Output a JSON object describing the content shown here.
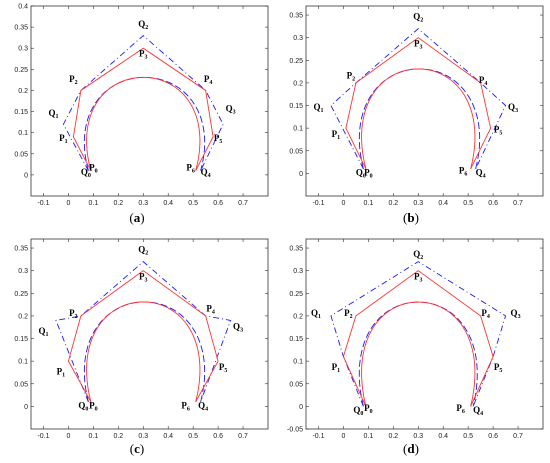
{
  "colors": {
    "control": "#1a1aff",
    "fitted": "#ff3333",
    "frame": "#333333"
  },
  "chart_data": [
    {
      "type": "line",
      "caption": "(a)",
      "xlim": [
        -0.15,
        0.8
      ],
      "ylim": [
        -0.05,
        0.4
      ],
      "xticks": [
        -0.1,
        0,
        0.1,
        0.2,
        0.3,
        0.4,
        0.5,
        0.6,
        0.7
      ],
      "yticks": [
        0,
        0.05,
        0.1,
        0.15,
        0.2,
        0.25,
        0.3,
        0.35,
        0.4
      ],
      "xtick_labels": [
        "-0.1",
        "0",
        "0.1",
        "0.2",
        "0.3",
        "0.4",
        "0.5",
        "0.6",
        "0.7"
      ],
      "ytick_labels": [
        "0",
        "0.05",
        "0.1",
        "0.15",
        "0.2",
        "0.25",
        "0.3",
        "0.35",
        "0.4"
      ],
      "series": [
        {
          "style": "control",
          "points": [
            [
              0.08,
              0.01
            ],
            [
              -0.02,
              0.12
            ],
            [
              0.05,
              0.2
            ],
            [
              0.3,
              0.33
            ],
            [
              0.55,
              0.2
            ],
            [
              0.62,
              0.12
            ],
            [
              0.53,
              0.01
            ]
          ]
        },
        {
          "style": "fitted",
          "points": [
            [
              0.09,
              0.01
            ],
            [
              0.02,
              0.09
            ],
            [
              0.05,
              0.2
            ],
            [
              0.3,
              0.3
            ],
            [
              0.55,
              0.2
            ],
            [
              0.58,
              0.09
            ],
            [
              0.51,
              0.01
            ]
          ]
        }
      ],
      "labels": [
        {
          "t": "Q",
          "s": "0",
          "x": 0.07,
          "y": 0.0
        },
        {
          "t": "P",
          "s": "0",
          "x": 0.1,
          "y": 0.01
        },
        {
          "t": "Q",
          "s": "1",
          "x": -0.06,
          "y": 0.14
        },
        {
          "t": "P",
          "s": "1",
          "x": -0.02,
          "y": 0.08
        },
        {
          "t": "P",
          "s": "2",
          "x": 0.02,
          "y": 0.22
        },
        {
          "t": "Q",
          "s": "2",
          "x": 0.3,
          "y": 0.35
        },
        {
          "t": "P",
          "s": "3",
          "x": 0.3,
          "y": 0.28
        },
        {
          "t": "P",
          "s": "4",
          "x": 0.56,
          "y": 0.22
        },
        {
          "t": "Q",
          "s": "3",
          "x": 0.65,
          "y": 0.15
        },
        {
          "t": "P",
          "s": "5",
          "x": 0.6,
          "y": 0.08
        },
        {
          "t": "P",
          "s": "6",
          "x": 0.49,
          "y": 0.01
        },
        {
          "t": "Q",
          "s": "4",
          "x": 0.55,
          "y": 0.0
        }
      ]
    },
    {
      "type": "line",
      "caption": "(b)",
      "xlim": [
        -0.15,
        0.8
      ],
      "ylim": [
        -0.05,
        0.37
      ],
      "xticks": [
        -0.1,
        0,
        0.1,
        0.2,
        0.3,
        0.4,
        0.5,
        0.6,
        0.7
      ],
      "yticks": [
        0,
        0.05,
        0.1,
        0.15,
        0.2,
        0.25,
        0.3,
        0.35
      ],
      "xtick_labels": [
        "-0.1",
        "0",
        "0.1",
        "0.2",
        "0.3",
        "0.4",
        "0.5",
        "0.6",
        "0.7"
      ],
      "ytick_labels": [
        "0",
        "0.05",
        "0.1",
        "0.15",
        "0.2",
        "0.25",
        "0.3",
        "0.35"
      ],
      "series": [
        {
          "style": "control",
          "points": [
            [
              0.08,
              0.01
            ],
            [
              -0.05,
              0.15
            ],
            [
              0.05,
              0.2
            ],
            [
              0.3,
              0.32
            ],
            [
              0.55,
              0.2
            ],
            [
              0.65,
              0.15
            ],
            [
              0.53,
              0.01
            ]
          ]
        },
        {
          "style": "fitted",
          "points": [
            [
              0.09,
              0.01
            ],
            [
              0.01,
              0.1
            ],
            [
              0.05,
              0.2
            ],
            [
              0.3,
              0.3
            ],
            [
              0.55,
              0.2
            ],
            [
              0.59,
              0.1
            ],
            [
              0.51,
              0.01
            ]
          ]
        }
      ],
      "labels": [
        {
          "t": "Q",
          "s": "0",
          "x": 0.07,
          "y": -0.005
        },
        {
          "t": "P",
          "s": "0",
          "x": 0.1,
          "y": -0.005
        },
        {
          "t": "Q",
          "s": "1",
          "x": -0.1,
          "y": 0.14
        },
        {
          "t": "P",
          "s": "1",
          "x": -0.03,
          "y": 0.08
        },
        {
          "t": "P",
          "s": "2",
          "x": 0.03,
          "y": 0.21
        },
        {
          "t": "Q",
          "s": "2",
          "x": 0.3,
          "y": 0.34
        },
        {
          "t": "P",
          "s": "3",
          "x": 0.3,
          "y": 0.28
        },
        {
          "t": "P",
          "s": "4",
          "x": 0.56,
          "y": 0.2
        },
        {
          "t": "Q",
          "s": "3",
          "x": 0.68,
          "y": 0.14
        },
        {
          "t": "P",
          "s": "5",
          "x": 0.62,
          "y": 0.09
        },
        {
          "t": "P",
          "s": "6",
          "x": 0.48,
          "y": 0.0
        },
        {
          "t": "Q",
          "s": "4",
          "x": 0.55,
          "y": -0.005
        }
      ]
    },
    {
      "type": "line",
      "caption": "(c)",
      "xlim": [
        -0.15,
        0.8
      ],
      "ylim": [
        -0.05,
        0.37
      ],
      "xticks": [
        -0.1,
        0,
        0.1,
        0.2,
        0.3,
        0.4,
        0.5,
        0.6,
        0.7
      ],
      "yticks": [
        0,
        0.05,
        0.1,
        0.15,
        0.2,
        0.25,
        0.3,
        0.35
      ],
      "xtick_labels": [
        "-0.1",
        "0",
        "0.1",
        "0.2",
        "0.3",
        "0.4",
        "0.5",
        "0.6",
        "0.7"
      ],
      "ytick_labels": [
        "0",
        "0.05",
        "0.1",
        "0.15",
        "0.2",
        "0.25",
        "0.3",
        "0.35"
      ],
      "series": [
        {
          "style": "control",
          "points": [
            [
              0.08,
              0.01
            ],
            [
              -0.05,
              0.19
            ],
            [
              0.05,
              0.2
            ],
            [
              0.3,
              0.32
            ],
            [
              0.55,
              0.2
            ],
            [
              0.65,
              0.19
            ],
            [
              0.53,
              0.01
            ]
          ]
        },
        {
          "style": "fitted",
          "points": [
            [
              0.09,
              0.01
            ],
            [
              0.0,
              0.1
            ],
            [
              0.05,
              0.2
            ],
            [
              0.3,
              0.3
            ],
            [
              0.55,
              0.2
            ],
            [
              0.6,
              0.1
            ],
            [
              0.51,
              0.01
            ]
          ]
        }
      ],
      "labels": [
        {
          "t": "Q",
          "s": "0",
          "x": 0.06,
          "y": -0.005
        },
        {
          "t": "P",
          "s": "0",
          "x": 0.1,
          "y": -0.005
        },
        {
          "t": "Q",
          "s": "1",
          "x": -0.1,
          "y": 0.16
        },
        {
          "t": "P",
          "s": "1",
          "x": -0.03,
          "y": 0.07
        },
        {
          "t": "P",
          "s": "2",
          "x": 0.02,
          "y": 0.2
        },
        {
          "t": "Q",
          "s": "2",
          "x": 0.3,
          "y": 0.34
        },
        {
          "t": "P",
          "s": "3",
          "x": 0.3,
          "y": 0.28
        },
        {
          "t": "P",
          "s": "4",
          "x": 0.57,
          "y": 0.21
        },
        {
          "t": "Q",
          "s": "3",
          "x": 0.68,
          "y": 0.17
        },
        {
          "t": "P",
          "s": "5",
          "x": 0.62,
          "y": 0.08
        },
        {
          "t": "P",
          "s": "6",
          "x": 0.47,
          "y": -0.005
        },
        {
          "t": "Q",
          "s": "4",
          "x": 0.54,
          "y": -0.005
        }
      ]
    },
    {
      "type": "line",
      "caption": "(d)",
      "xlim": [
        -0.15,
        0.8
      ],
      "ylim": [
        -0.05,
        0.37
      ],
      "xticks": [
        -0.1,
        0,
        0.1,
        0.2,
        0.3,
        0.4,
        0.5,
        0.6,
        0.7
      ],
      "yticks": [
        -0.05,
        0,
        0.05,
        0.1,
        0.15,
        0.2,
        0.25,
        0.3,
        0.35
      ],
      "xtick_labels": [
        "-0.1",
        "0",
        "0.1",
        "0.2",
        "0.3",
        "0.4",
        "0.5",
        "0.6",
        "0.7"
      ],
      "ytick_labels": [
        "-0.05",
        "0",
        "0.05",
        "0.1",
        "0.15",
        "0.2",
        "0.25",
        "0.3",
        "0.35"
      ],
      "series": [
        {
          "style": "control",
          "points": [
            [
              0.08,
              0.0
            ],
            [
              0.0,
              0.11
            ],
            [
              -0.05,
              0.2
            ],
            [
              0.3,
              0.32
            ],
            [
              0.65,
              0.2
            ],
            [
              0.6,
              0.11
            ],
            [
              0.52,
              0.0
            ]
          ]
        },
        {
          "style": "fitted",
          "points": [
            [
              0.09,
              0.0
            ],
            [
              0.0,
              0.11
            ],
            [
              0.05,
              0.2
            ],
            [
              0.3,
              0.3
            ],
            [
              0.55,
              0.2
            ],
            [
              0.6,
              0.11
            ],
            [
              0.51,
              0.0
            ]
          ]
        }
      ],
      "labels": [
        {
          "t": "Q",
          "s": "0",
          "x": 0.06,
          "y": -0.015
        },
        {
          "t": "P",
          "s": "0",
          "x": 0.1,
          "y": -0.01
        },
        {
          "t": "Q",
          "s": "1",
          "x": -0.11,
          "y": 0.2
        },
        {
          "t": "P",
          "s": "1",
          "x": -0.03,
          "y": 0.08
        },
        {
          "t": "P",
          "s": "2",
          "x": 0.02,
          "y": 0.2
        },
        {
          "t": "Q",
          "s": "2",
          "x": 0.3,
          "y": 0.33
        },
        {
          "t": "P",
          "s": "3",
          "x": 0.3,
          "y": 0.28
        },
        {
          "t": "P",
          "s": "4",
          "x": 0.57,
          "y": 0.2
        },
        {
          "t": "Q",
          "s": "3",
          "x": 0.69,
          "y": 0.2
        },
        {
          "t": "P",
          "s": "5",
          "x": 0.62,
          "y": 0.08
        },
        {
          "t": "P",
          "s": "6",
          "x": 0.47,
          "y": -0.01
        },
        {
          "t": "Q",
          "s": "4",
          "x": 0.54,
          "y": -0.015
        }
      ]
    }
  ]
}
